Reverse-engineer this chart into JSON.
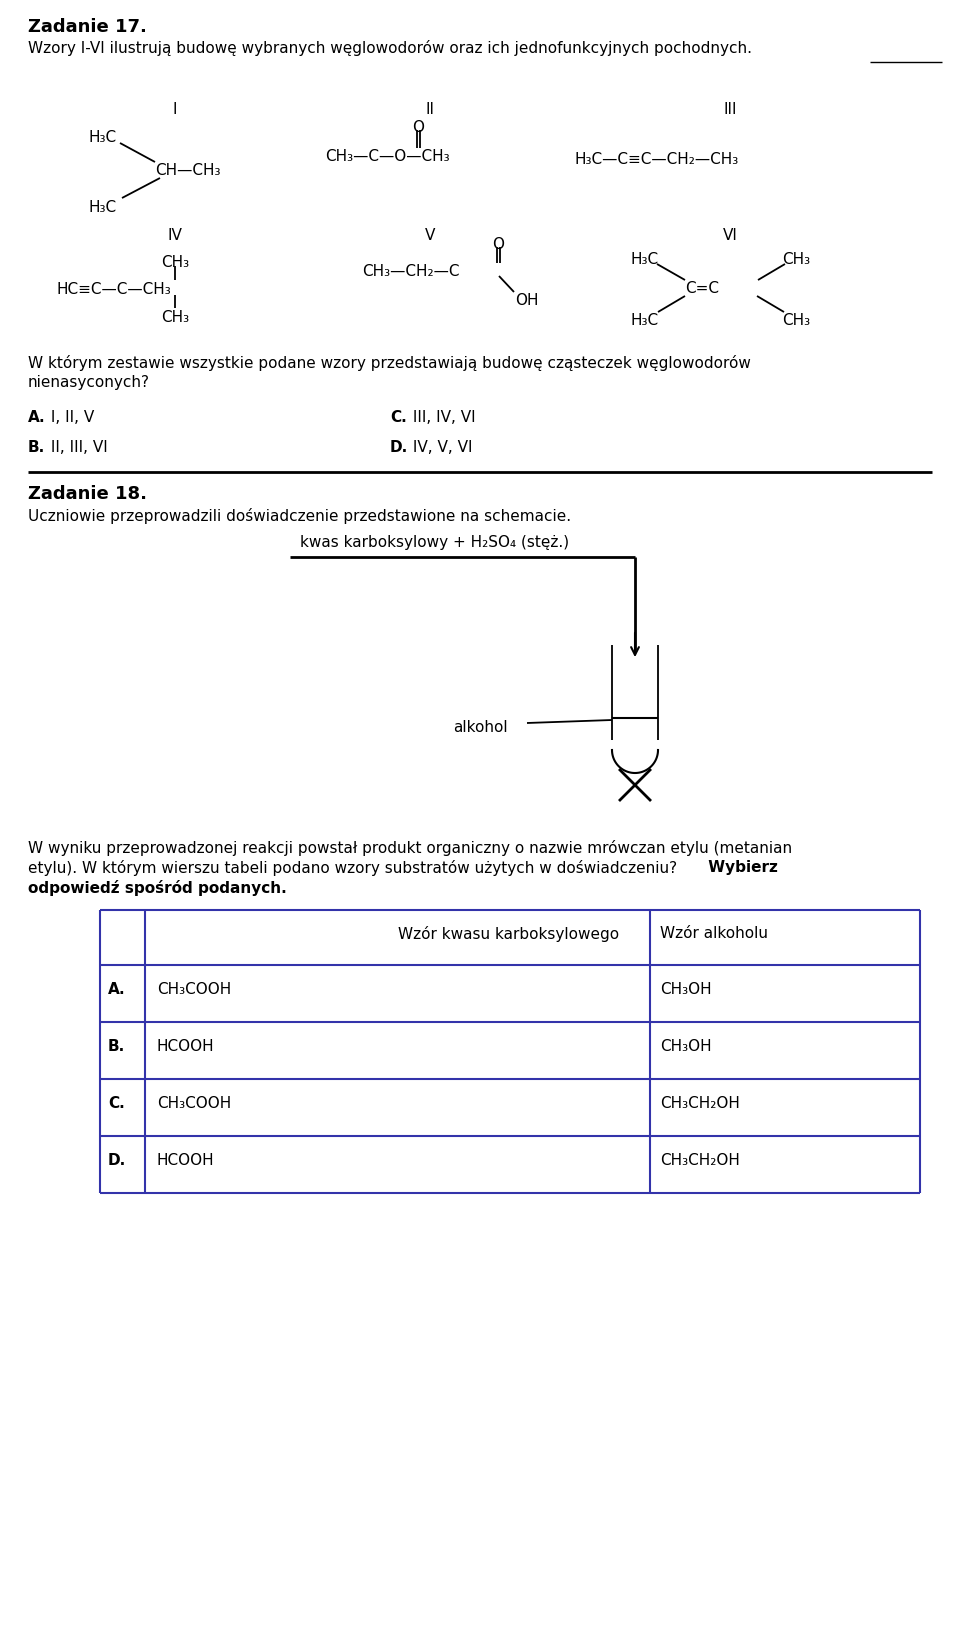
{
  "bg": "#ffffff",
  "z17_title": "Zadanie 17.",
  "z17_sub": "Wzory I-VI ilustrują budowę wybranych węglowodorów oraz ich jednofunkcyjnych pochodnych.",
  "z17_q1": "W którym zestawie wszystkie podane wzory przedstawiają budowę cząsteczek węglowodorów",
  "z17_q2": "nienasyconych?",
  "z18_title": "Zadanie 18.",
  "z18_sub": "Uczniowie przeprowadzili doświadczenie przedstawione na schemacie.",
  "schema_txt": "kwas karboksylowy + H₂SO₄ (stęż.)",
  "alkohol": "alkohol",
  "q18_l1": "W wyniku przeprowadzonej reakcji powstał produkt organiczny o nazwie mrówczan etylu (metanian",
  "q18_l2": "etylu). W którym wierszu tabeli podano wzory substratów użytych w doświadczeniu?",
  "q18_wybierz": "Wybierz",
  "q18_l3": "odpowiedź spośród podanych.",
  "col1h": "Wzór kwasu karboksylowego",
  "col2h": "Wzór alkoholu",
  "rows": [
    [
      "A.",
      "CH₃COOH",
      "CH₃OH"
    ],
    [
      "B.",
      "HCOOH",
      "CH₃OH"
    ],
    [
      "C.",
      "CH₃COOH",
      "CH₃CH₂OH"
    ],
    [
      "D.",
      "HCOOH",
      "CH₃CH₂OH"
    ]
  ],
  "table_color": "#3333aa"
}
